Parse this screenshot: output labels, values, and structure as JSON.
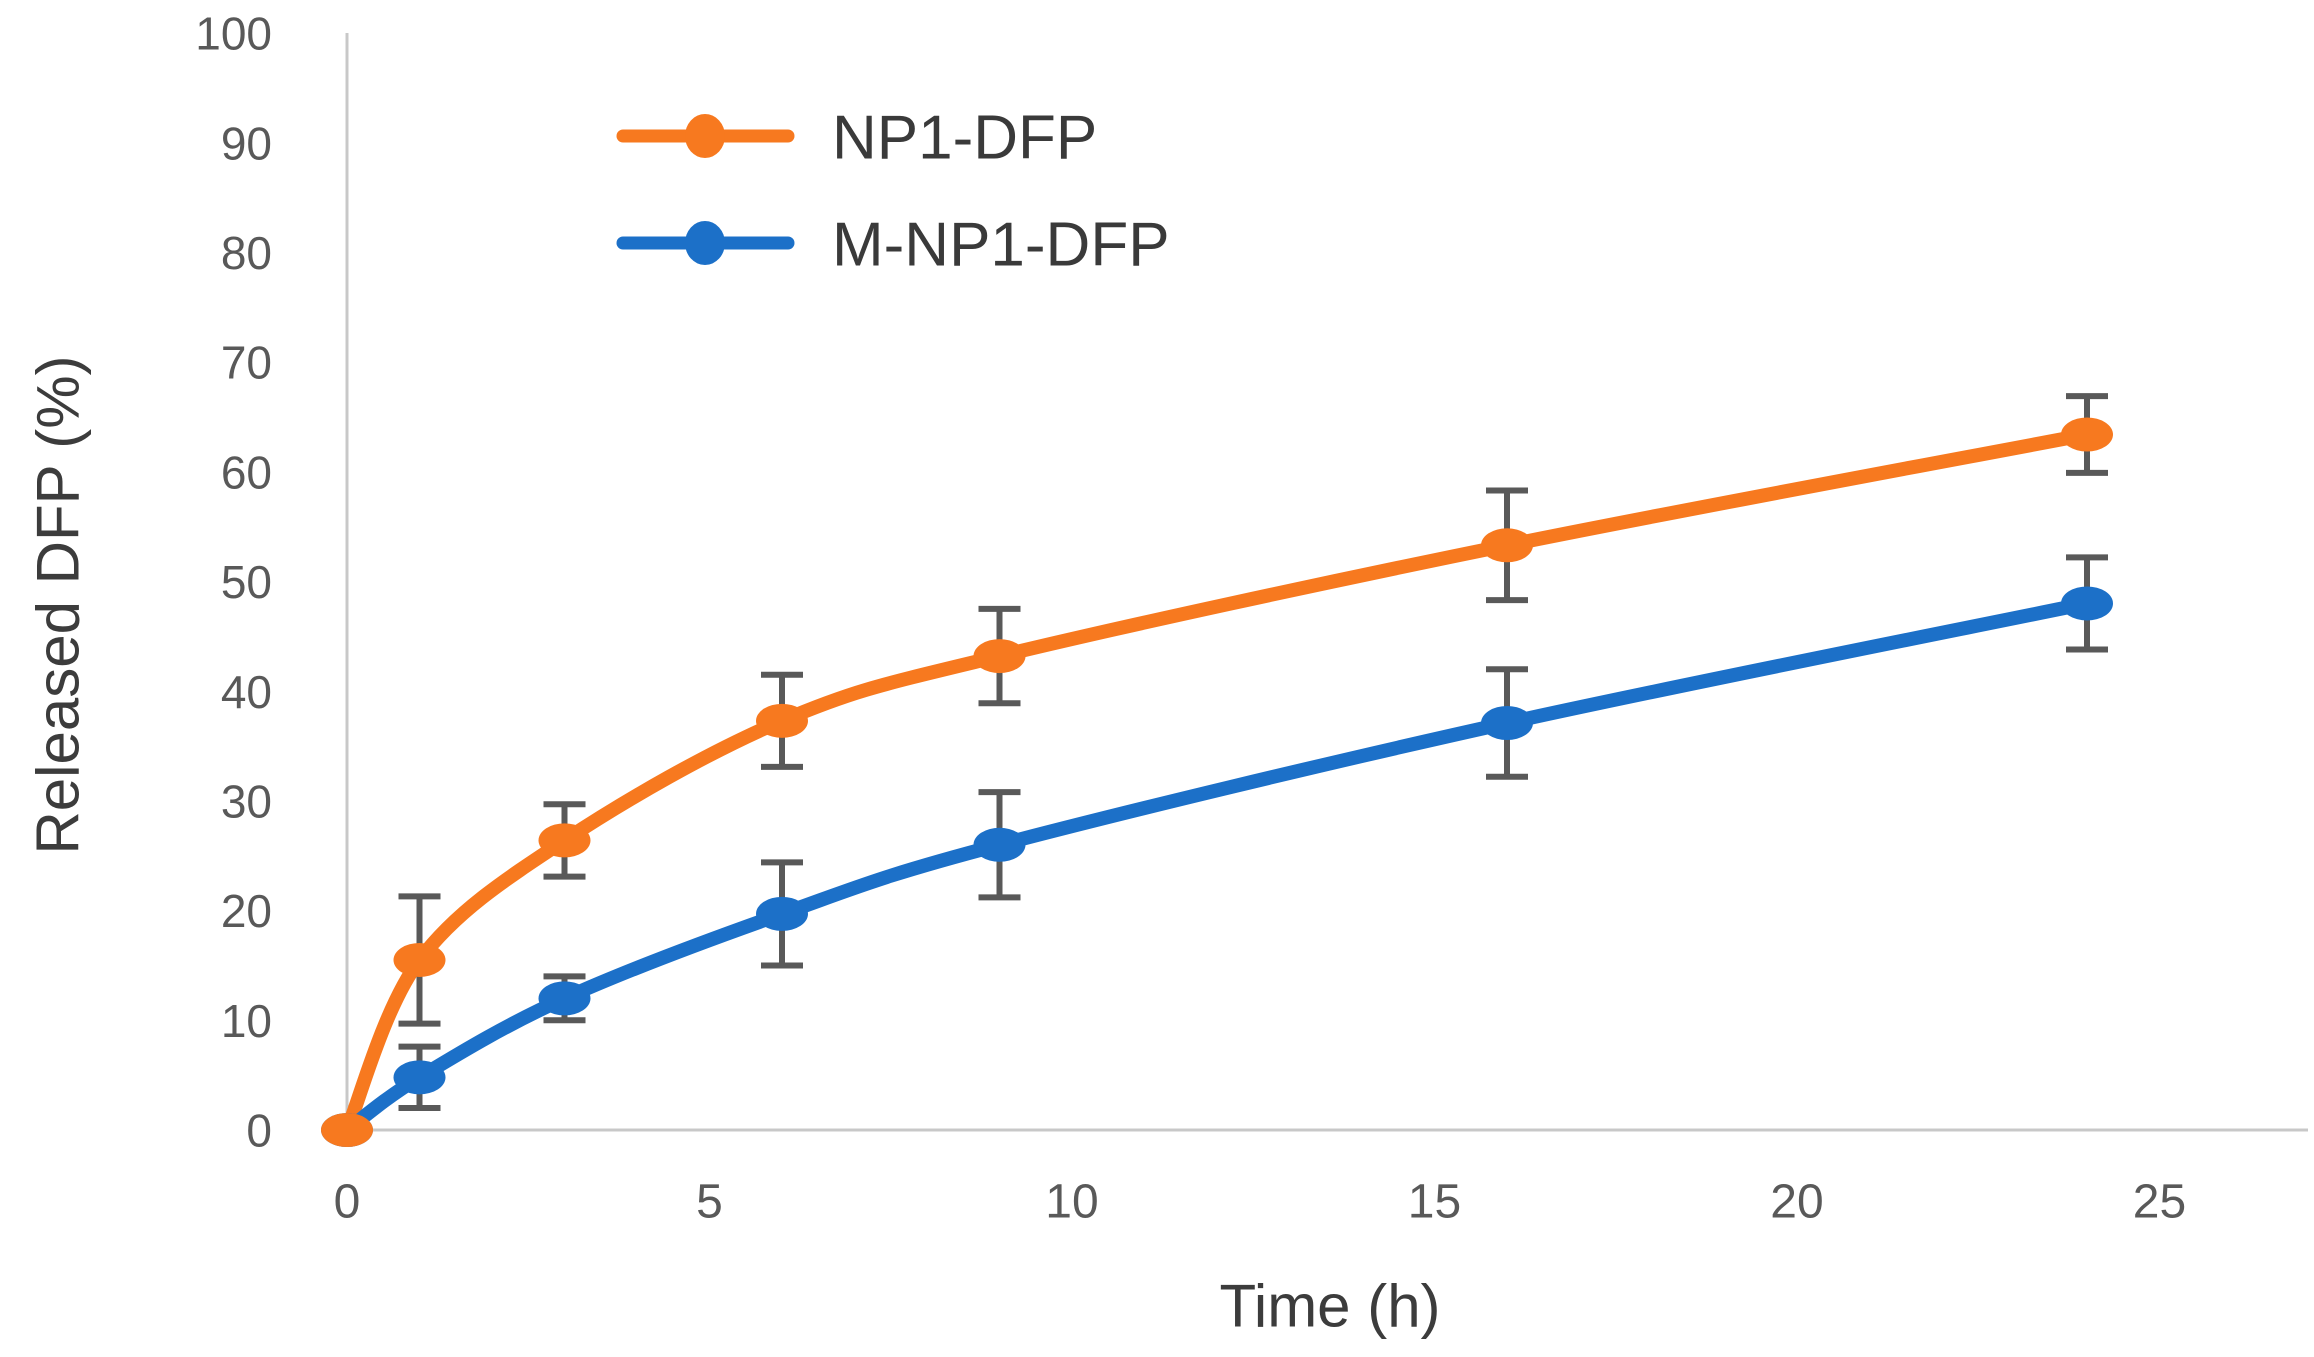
{
  "chart_data": {
    "type": "line",
    "title": "",
    "xlabel": "Time (h)",
    "ylabel": "Released DFP (%)",
    "xlim": [
      0,
      25
    ],
    "ylim": [
      0,
      100
    ],
    "x_ticks": [
      0,
      5,
      10,
      15,
      20,
      25
    ],
    "y_ticks": [
      0,
      10,
      20,
      30,
      40,
      50,
      60,
      70,
      80,
      90,
      100
    ],
    "grid": false,
    "legend_position": "top-left-inside",
    "x": [
      0,
      1,
      3,
      6,
      9,
      16,
      24
    ],
    "series": [
      {
        "name": "NP1-DFP",
        "color": "#F7791F",
        "marker": "ellipse",
        "values": [
          0,
          15.5,
          26.4,
          37.3,
          43.2,
          53.3,
          63.4
        ],
        "errors": [
          0,
          5.8,
          3.3,
          4.2,
          4.3,
          5.0,
          3.5
        ]
      },
      {
        "name": "M-NP1-DFP",
        "color": "#1C70C8",
        "marker": "ellipse",
        "values": [
          0,
          4.8,
          12.0,
          19.7,
          26.0,
          37.1,
          48.0
        ],
        "errors": [
          0,
          2.8,
          2.0,
          4.7,
          4.8,
          4.9,
          4.2
        ]
      }
    ],
    "colors": {
      "error_bar": "#595959",
      "axis_line": "#C8C8C8",
      "tick_label": "#595959",
      "axis_title": "#3C3C3C",
      "legend_text": "#3A3A3A",
      "background": "#FFFFFF"
    }
  }
}
